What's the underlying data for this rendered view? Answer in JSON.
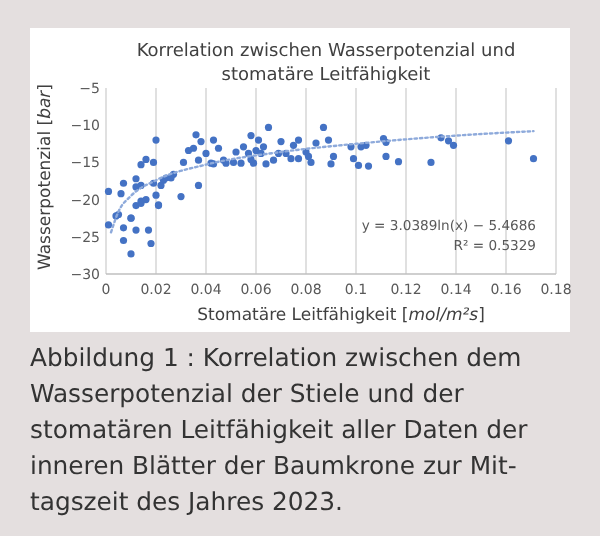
{
  "chart_data": {
    "type": "scatter",
    "title": "Korrelation zwischen Wasserpotenzial und\nstomatäre Leitfähigkeit",
    "xlabel": "Stomatäre Leitfähigkeit [mol/m²s]",
    "ylabel": "Wasserpotenzial [bar]",
    "xlim": [
      0,
      0.18
    ],
    "xticks": [
      0,
      0.02,
      0.04,
      0.06,
      0.08,
      0.1,
      0.12,
      0.14,
      0.16,
      0.18
    ],
    "ylim": [
      -30,
      -5
    ],
    "yticks": [
      {
        "value": -30,
        "label": "−30"
      },
      {
        "value": -25,
        "label": "−25"
      },
      {
        "value": -20,
        "label": "−20"
      },
      {
        "value": -15,
        "label": "−15"
      },
      {
        "value": -10,
        "label": "−10"
      },
      {
        "value": -5,
        "label": "−5"
      }
    ],
    "grid": "x",
    "series": [
      {
        "color": "#4472c4",
        "marker": "circle",
        "x": [
          0.001,
          0.006,
          0.007,
          0.012,
          0.004,
          0.01,
          0.014,
          0.012,
          0.014,
          0.016,
          0.014,
          0.019,
          0.02,
          0.019,
          0.02,
          0.021,
          0.023,
          0.022,
          0.024,
          0.027,
          0.03,
          0.031,
          0.033,
          0.035,
          0.036,
          0.037,
          0.038,
          0.037,
          0.04,
          0.043,
          0.045,
          0.043,
          0.047,
          0.051,
          0.052,
          0.054,
          0.055,
          0.057,
          0.058,
          0.059,
          0.06,
          0.061,
          0.062,
          0.063,
          0.064,
          0.065,
          0.067,
          0.07,
          0.072,
          0.074,
          0.075,
          0.077,
          0.077,
          0.08,
          0.081,
          0.082,
          0.084,
          0.087,
          0.089,
          0.09,
          0.091,
          0.098,
          0.099,
          0.101,
          0.102,
          0.104,
          0.105,
          0.111,
          0.112,
          0.112,
          0.117,
          0.13,
          0.134,
          0.137,
          0.139,
          0.161,
          0.171,
          0.026,
          0.042,
          0.048,
          0.058,
          0.069,
          0.001,
          0.005,
          0.007,
          0.007,
          0.01,
          0.01,
          0.012,
          0.012,
          0.014,
          0.017,
          0.018,
          0.021,
          0.016
        ],
        "values": [
          -18.9,
          -19.2,
          -17.8,
          -17.2,
          -22.2,
          -22.5,
          -20.2,
          -18.3,
          -18.1,
          -14.6,
          -15.3,
          -15,
          -12,
          -17.8,
          -19.4,
          -20.7,
          -17.4,
          -18.1,
          -17.1,
          -16.6,
          -19.6,
          -15,
          -13.4,
          -13.1,
          -11.3,
          -14.7,
          -12.2,
          -18.1,
          -13.8,
          -15.2,
          -13.1,
          -12,
          -14.7,
          -15,
          -13.6,
          -15.1,
          -12.9,
          -13.8,
          -11.4,
          -15.1,
          -13.4,
          -12,
          -13.8,
          -12.9,
          -15.2,
          -10.3,
          -14.7,
          -12.2,
          -13.8,
          -14.5,
          -12.7,
          -12,
          -14.5,
          -13.6,
          -14.2,
          -15,
          -12.4,
          -10.3,
          -12,
          -15.2,
          -14.2,
          -12.9,
          -14.5,
          -15.4,
          -12.9,
          -12.7,
          -15.5,
          -11.8,
          -14.2,
          -12.3,
          -14.9,
          -15,
          -11.7,
          -12.1,
          -12.7,
          -12.1,
          -14.5,
          -17.1,
          -15.1,
          -15.1,
          -14.6,
          -13.8,
          -23.4,
          -22,
          -23.8,
          -25.5,
          -27.3,
          -22.5,
          -24.1,
          -20.8,
          -20.5,
          -24.1,
          -25.9,
          -20.8,
          -20
        ]
      },
      {
        "type": "line",
        "color": "#8eaadb",
        "line_style": "dotted",
        "x": [
          0.002,
          0.005,
          0.01,
          0.02,
          0.04,
          0.07,
          0.1,
          0.14,
          0.171
        ],
        "values": [
          -24.4,
          -21.6,
          -19.5,
          -17.4,
          -15.3,
          -13.6,
          -12.5,
          -11.4,
          -10.8
        ]
      }
    ],
    "annotations": [
      "y = 3.0389ln(x) − 5.4686\nR² = 0.5329",
      "Abbildung 1 : Korrelation zwischen dem\nWasserpotenzial der Stiele und der\nstomatären Leitfähigkeit aller Daten der\ninneren Blätter der Baumkrone zur Mit-\ntagszeit des Jahres 2023."
    ]
  }
}
